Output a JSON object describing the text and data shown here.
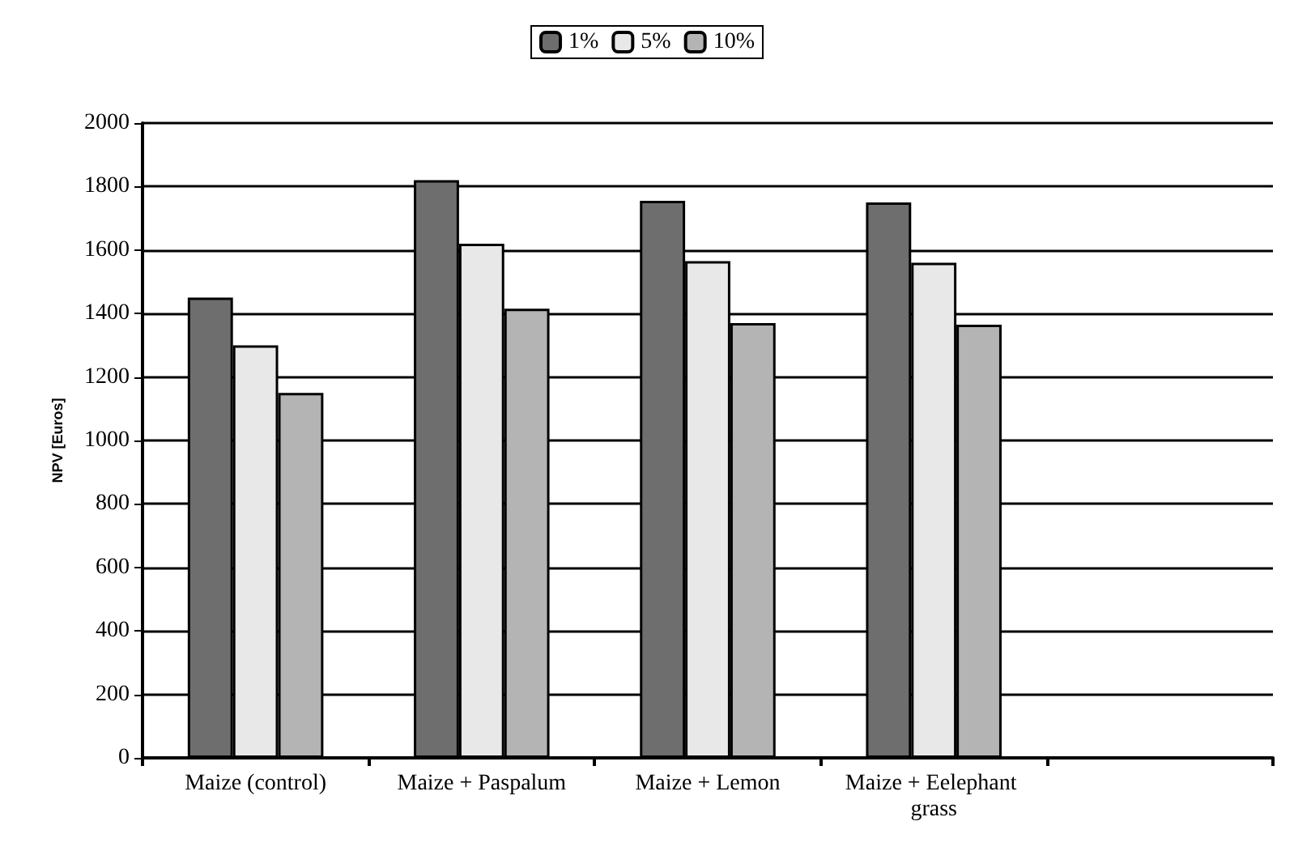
{
  "chart_data": {
    "type": "bar",
    "ylabel": "NPV [Euros]",
    "categories": [
      "Maize (control)",
      "Maize + Paspalum",
      "Maize + Lemon",
      "Maize + Eelephant grass",
      null
    ],
    "series": [
      {
        "name": "1%",
        "color": "#6e6e6e",
        "values": [
          1450,
          1820,
          1755,
          1750,
          null
        ]
      },
      {
        "name": "5%",
        "color": "#e8e8e8",
        "values": [
          1300,
          1620,
          1565,
          1560,
          null
        ]
      },
      {
        "name": "10%",
        "color": "#b4b4b4",
        "values": [
          1150,
          1415,
          1370,
          1365,
          null
        ]
      }
    ],
    "ylim": [
      0,
      2000
    ],
    "yticks": [
      0,
      200,
      400,
      600,
      800,
      1000,
      1200,
      1400,
      1600,
      1800,
      2000
    ],
    "grid": "y",
    "legend": "top"
  }
}
